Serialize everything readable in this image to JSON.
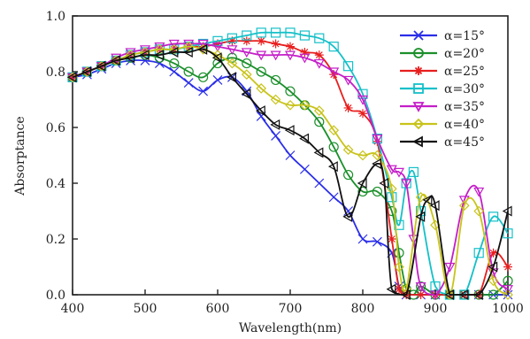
{
  "chart_data": {
    "type": "line",
    "xlabel": "Wavelength(nm)",
    "ylabel": "Absorptance",
    "xlim": [
      400,
      1000
    ],
    "ylim": [
      0.0,
      1.0
    ],
    "xticks": [
      400,
      500,
      600,
      700,
      800,
      900,
      1000
    ],
    "yticks": [
      0.0,
      0.2,
      0.4,
      0.6,
      0.8,
      1.0
    ],
    "xtick_labels": [
      "400",
      "500",
      "600",
      "700",
      "800",
      "900",
      "1000"
    ],
    "ytick_labels": [
      "0.0",
      "0.2",
      "0.4",
      "0.6",
      "0.8",
      "1.0"
    ],
    "legend_position": "top-right",
    "grid": false,
    "series": [
      {
        "name": "α=15°",
        "color": "#2a2ee8",
        "marker": "x",
        "x": [
          400,
          420,
          440,
          460,
          480,
          500,
          520,
          540,
          560,
          580,
          600,
          620,
          640,
          660,
          680,
          700,
          720,
          740,
          760,
          780,
          800,
          820,
          840,
          850,
          860,
          880,
          900,
          920,
          940,
          960,
          980,
          1000
        ],
        "y": [
          0.78,
          0.79,
          0.81,
          0.83,
          0.84,
          0.84,
          0.83,
          0.8,
          0.76,
          0.73,
          0.77,
          0.78,
          0.73,
          0.64,
          0.57,
          0.5,
          0.45,
          0.4,
          0.35,
          0.3,
          0.2,
          0.19,
          0.15,
          0.03,
          0.0,
          0.0,
          0.0,
          0.0,
          0.0,
          0.0,
          0.0,
          0.0
        ]
      },
      {
        "name": "α=20°",
        "color": "#1a8f2a",
        "marker": "circle",
        "x": [
          400,
          420,
          440,
          460,
          480,
          500,
          520,
          540,
          560,
          580,
          600,
          620,
          640,
          660,
          680,
          700,
          720,
          740,
          760,
          780,
          800,
          820,
          840,
          850,
          860,
          870,
          880,
          900,
          920,
          940,
          960,
          980,
          1000
        ],
        "y": [
          0.78,
          0.8,
          0.82,
          0.84,
          0.85,
          0.86,
          0.85,
          0.83,
          0.8,
          0.78,
          0.83,
          0.85,
          0.83,
          0.8,
          0.77,
          0.73,
          0.68,
          0.62,
          0.53,
          0.43,
          0.37,
          0.37,
          0.3,
          0.15,
          0.02,
          0.0,
          0.03,
          0.0,
          0.0,
          0.0,
          0.0,
          0.0,
          0.05
        ]
      },
      {
        "name": "α=25°",
        "color": "#e81e1e",
        "marker": "star",
        "x": [
          400,
          420,
          440,
          460,
          480,
          500,
          520,
          540,
          560,
          580,
          600,
          620,
          640,
          660,
          680,
          700,
          720,
          740,
          760,
          780,
          800,
          820,
          840,
          850,
          860,
          880,
          900,
          920,
          940,
          960,
          980,
          1000
        ],
        "y": [
          0.78,
          0.8,
          0.82,
          0.84,
          0.86,
          0.87,
          0.88,
          0.88,
          0.89,
          0.89,
          0.9,
          0.91,
          0.91,
          0.91,
          0.9,
          0.89,
          0.87,
          0.86,
          0.79,
          0.67,
          0.65,
          0.55,
          0.2,
          0.02,
          0.0,
          0.0,
          0.0,
          0.0,
          0.0,
          0.0,
          0.15,
          0.1
        ]
      },
      {
        "name": "α=30°",
        "color": "#15c0c8",
        "marker": "square",
        "x": [
          400,
          420,
          440,
          460,
          480,
          500,
          520,
          540,
          560,
          580,
          600,
          620,
          640,
          660,
          680,
          700,
          720,
          740,
          760,
          780,
          800,
          820,
          840,
          850,
          860,
          870,
          880,
          900,
          920,
          940,
          960,
          980,
          1000
        ],
        "y": [
          0.78,
          0.8,
          0.82,
          0.84,
          0.86,
          0.87,
          0.88,
          0.88,
          0.89,
          0.9,
          0.91,
          0.92,
          0.93,
          0.94,
          0.94,
          0.94,
          0.93,
          0.92,
          0.89,
          0.82,
          0.72,
          0.56,
          0.35,
          0.25,
          0.4,
          0.44,
          0.3,
          0.03,
          0.0,
          0.0,
          0.15,
          0.28,
          0.22
        ]
      },
      {
        "name": "α=35°",
        "color": "#c41ec8",
        "marker": "triangle-down",
        "x": [
          400,
          420,
          440,
          460,
          480,
          500,
          520,
          540,
          560,
          580,
          600,
          620,
          640,
          660,
          680,
          700,
          720,
          740,
          760,
          780,
          800,
          820,
          840,
          850,
          860,
          870,
          880,
          900,
          920,
          940,
          960,
          980,
          1000
        ],
        "y": [
          0.78,
          0.8,
          0.82,
          0.85,
          0.87,
          0.88,
          0.89,
          0.9,
          0.9,
          0.9,
          0.89,
          0.88,
          0.87,
          0.86,
          0.86,
          0.86,
          0.85,
          0.83,
          0.8,
          0.77,
          0.7,
          0.56,
          0.45,
          0.44,
          0.4,
          0.2,
          0.03,
          0.0,
          0.1,
          0.34,
          0.37,
          0.08,
          0.02
        ]
      },
      {
        "name": "α=40°",
        "color": "#c8c31a",
        "marker": "diamond",
        "x": [
          400,
          420,
          440,
          460,
          480,
          500,
          520,
          540,
          560,
          580,
          600,
          620,
          640,
          660,
          680,
          700,
          720,
          740,
          760,
          780,
          800,
          820,
          840,
          850,
          860,
          880,
          900,
          920,
          940,
          960,
          980,
          1000
        ],
        "y": [
          0.78,
          0.8,
          0.82,
          0.84,
          0.86,
          0.87,
          0.88,
          0.88,
          0.89,
          0.88,
          0.86,
          0.83,
          0.79,
          0.74,
          0.7,
          0.68,
          0.68,
          0.66,
          0.59,
          0.52,
          0.5,
          0.5,
          0.38,
          0.1,
          0.02,
          0.35,
          0.25,
          0.0,
          0.32,
          0.3,
          0.05,
          0.0
        ]
      },
      {
        "name": "α=45°",
        "color": "#111111",
        "marker": "triangle-left",
        "x": [
          400,
          420,
          440,
          460,
          480,
          500,
          520,
          540,
          560,
          580,
          600,
          620,
          640,
          660,
          680,
          700,
          720,
          740,
          760,
          780,
          800,
          820,
          830,
          840,
          860,
          880,
          890,
          900,
          920,
          940,
          960,
          980,
          1000
        ],
        "y": [
          0.78,
          0.8,
          0.82,
          0.84,
          0.85,
          0.86,
          0.86,
          0.87,
          0.87,
          0.88,
          0.85,
          0.78,
          0.72,
          0.66,
          0.61,
          0.59,
          0.56,
          0.51,
          0.46,
          0.28,
          0.4,
          0.47,
          0.4,
          0.02,
          0.0,
          0.28,
          0.34,
          0.32,
          0.0,
          0.0,
          0.0,
          0.1,
          0.3
        ]
      }
    ]
  }
}
